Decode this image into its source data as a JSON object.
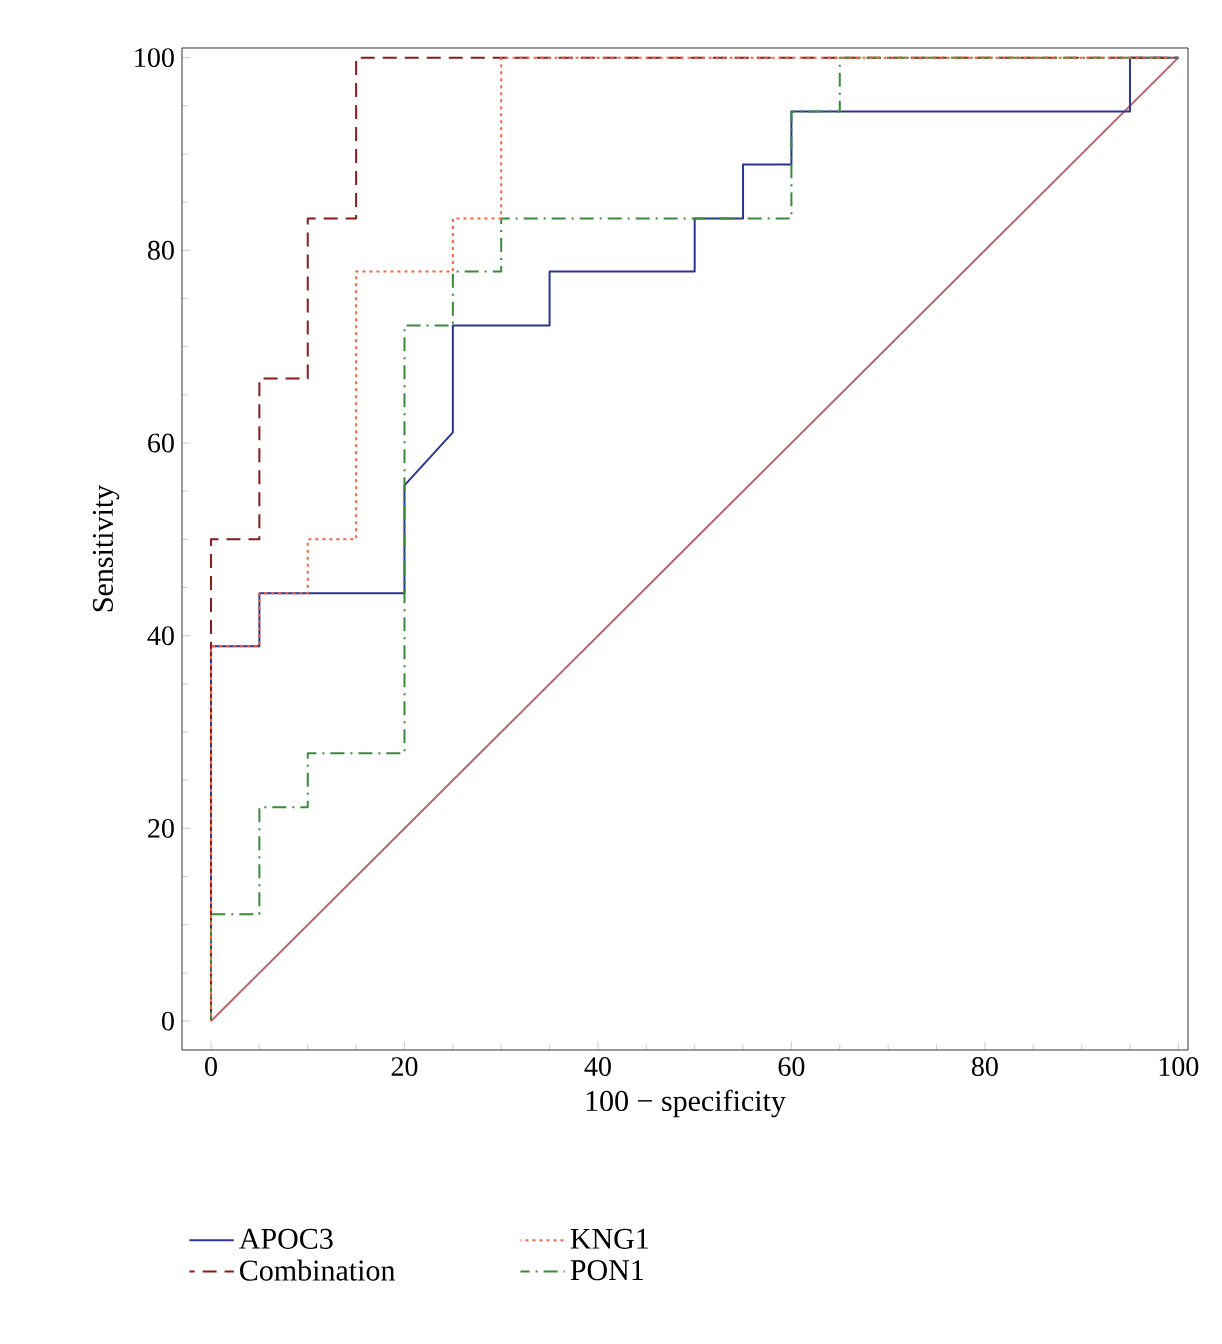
{
  "chart_data": {
    "type": "line",
    "xlabel": "100 − specificity",
    "ylabel": "Sensitivity",
    "xlim": [
      -3,
      101
    ],
    "ylim": [
      -3,
      101
    ],
    "xticks": [
      0,
      20,
      40,
      60,
      80,
      100
    ],
    "yticks": [
      0,
      20,
      40,
      60,
      80,
      100
    ],
    "grid": false,
    "legend": "bottom",
    "marker": "none",
    "series": [
      {
        "name": "APOC3",
        "color": "#2b3590",
        "line_style": "solid",
        "x": [
          0,
          0,
          5,
          5,
          20,
          20,
          25,
          25,
          35,
          35,
          50,
          50,
          55,
          55,
          60,
          60,
          95,
          95,
          100
        ],
        "values": [
          0,
          38.9,
          38.9,
          44.4,
          44.4,
          55.6,
          61.1,
          72.2,
          72.2,
          77.8,
          77.8,
          83.3,
          83.3,
          88.9,
          88.9,
          94.4,
          94.4,
          100,
          100
        ]
      },
      {
        "name": "Combination",
        "color": "#8b1a1a",
        "line_style": "dashed",
        "x": [
          0,
          0,
          5,
          5,
          10,
          10,
          15,
          15,
          100
        ],
        "values": [
          0,
          50,
          50,
          66.7,
          66.7,
          83.3,
          83.3,
          100,
          100
        ]
      },
      {
        "name": "KNG1",
        "color": "#ff6040",
        "line_style": "dotted",
        "x": [
          0,
          0,
          5,
          5,
          10,
          10,
          15,
          15,
          25,
          25,
          30,
          30,
          100
        ],
        "values": [
          0,
          38.9,
          38.9,
          44.4,
          44.4,
          50,
          50,
          77.8,
          77.8,
          83.3,
          83.3,
          100,
          100
        ]
      },
      {
        "name": "PON1",
        "color": "#3a8a3a",
        "line_style": "dashdot",
        "x": [
          0,
          0,
          5,
          5,
          10,
          10,
          20,
          20,
          25,
          25,
          30,
          30,
          60,
          60,
          65,
          65,
          100
        ],
        "values": [
          0,
          11.1,
          11.1,
          22.2,
          22.2,
          27.8,
          27.8,
          72.2,
          72.2,
          77.8,
          77.8,
          83.3,
          83.3,
          94.4,
          94.4,
          100,
          100
        ]
      },
      {
        "color": "#b5646e",
        "line_style": "solid",
        "x": [
          0,
          100
        ],
        "values": [
          0,
          100
        ]
      }
    ]
  }
}
